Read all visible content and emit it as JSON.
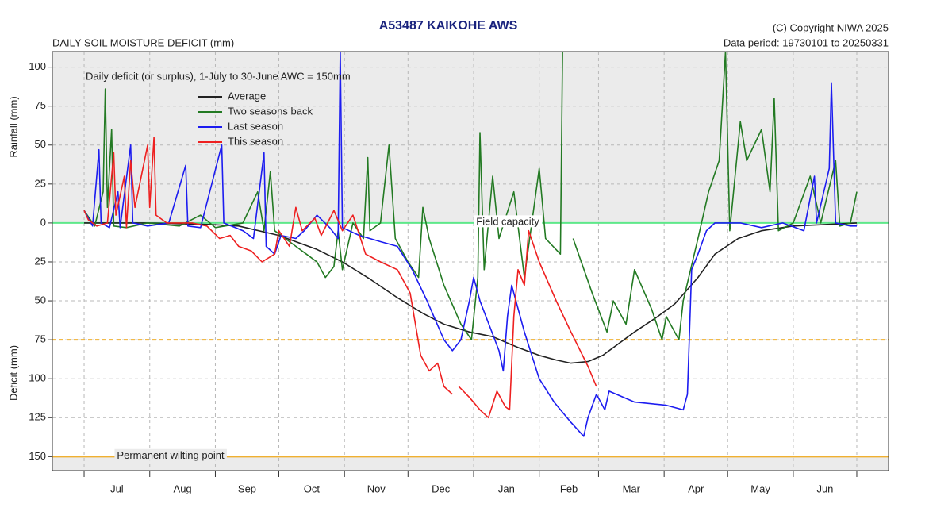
{
  "chart_data": {
    "type": "line",
    "title": "A53487  KAIKOHE AWS",
    "subtitle": "DAILY SOIL MOISTURE DEFICIT (mm)",
    "copyright": "(C) Copyright NIWA  2025",
    "data_period": "Data period:  19730101  to  20250331",
    "note": "Daily deficit (or surplus), 1-July to 30-June   AWC = 150mm",
    "y_label_upper": "Rainfall (mm)",
    "y_label_lower": "Deficit (mm)",
    "categories": [
      "Jul",
      "Aug",
      "Sep",
      "Oct",
      "Nov",
      "Dec",
      "Jan",
      "Feb",
      "Mar",
      "Apr",
      "May",
      "Jun"
    ],
    "xlim": [
      -15,
      380
    ],
    "xticks": [
      0,
      31,
      62,
      92,
      123,
      153,
      184,
      215,
      243,
      274,
      304,
      335,
      365
    ],
    "ylim": [
      -159,
      110
    ],
    "yticks": [
      {
        "value": -150,
        "label": "150"
      },
      {
        "value": -125,
        "label": "125"
      },
      {
        "value": -100,
        "label": "100"
      },
      {
        "value": -75,
        "label": "75"
      },
      {
        "value": -50,
        "label": "50"
      },
      {
        "value": -25,
        "label": "25"
      },
      0,
      25,
      50,
      75,
      100
    ],
    "grid": true,
    "legend": "upper left",
    "annotations": [
      {
        "text": "Field capacity",
        "y": 0,
        "color": "#5ee88a"
      },
      {
        "text": "Permanent wilting point",
        "y": -150,
        "color": "#f0b030"
      }
    ],
    "reference_lines": [
      {
        "y": -75,
        "color": "#f0b030",
        "dashed": true
      }
    ],
    "series": [
      {
        "name": "Average",
        "color": "#222222",
        "x": [
          0,
          30,
          60,
          73,
          92,
          110,
          122,
          135,
          148,
          160,
          170,
          182,
          193,
          205,
          215,
          223,
          230,
          238,
          245,
          252,
          260,
          270,
          279,
          290,
          298,
          309,
          320,
          335,
          350,
          365
        ],
        "values": [
          0,
          0,
          -1,
          -2,
          -8,
          -17,
          -25,
          -36,
          -48,
          -58,
          -65,
          -70,
          -73,
          -80,
          -85,
          -88,
          -90,
          -89,
          -85,
          -78,
          -70,
          -61,
          -52,
          -35,
          -20,
          -10,
          -5,
          -2,
          -1,
          0
        ]
      },
      {
        "name": "Two seasons back",
        "color": "#237a23",
        "x": [
          0,
          5,
          9,
          10,
          11,
          13,
          14,
          20,
          30,
          45,
          55,
          62,
          75,
          82,
          85,
          88,
          90,
          95,
          100,
          105,
          110,
          114,
          118,
          120,
          122,
          127,
          132,
          134,
          135,
          140,
          144,
          147,
          153,
          158,
          160,
          163,
          170,
          178,
          183,
          186,
          187,
          189,
          193,
          196,
          203,
          208,
          215,
          218,
          225,
          226,
          227,
          231,
          240,
          247,
          250,
          256,
          260,
          268,
          273,
          275,
          281,
          283,
          290,
          295,
          300,
          303,
          305,
          310,
          313,
          320,
          324,
          326,
          328,
          335,
          343,
          348,
          355,
          357,
          362,
          365
        ],
        "values": [
          8,
          -2,
          20,
          86,
          10,
          60,
          -2,
          -3,
          0,
          -2,
          5,
          -3,
          0,
          20,
          -5,
          33,
          -5,
          -10,
          -15,
          -20,
          -25,
          -35,
          -28,
          -5,
          -30,
          0,
          -10,
          42,
          -5,
          0,
          50,
          -10,
          -25,
          -35,
          10,
          -10,
          -40,
          -65,
          -75,
          -35,
          58,
          -30,
          30,
          -10,
          20,
          -35,
          35,
          -10,
          -20,
          110,
          null,
          -10,
          -45,
          -70,
          -50,
          -65,
          -30,
          -55,
          -75,
          -60,
          -75,
          -50,
          -10,
          20,
          40,
          110,
          -5,
          65,
          40,
          60,
          20,
          80,
          -5,
          0,
          30,
          0,
          40,
          -2,
          0,
          20
        ]
      },
      {
        "name": "Last season",
        "color": "#1c1cf0",
        "x": [
          0,
          4,
          7,
          8,
          12,
          16,
          17,
          22,
          23,
          30,
          40,
          48,
          49,
          55,
          65,
          66,
          75,
          80,
          85,
          86,
          90,
          93,
          100,
          104,
          110,
          116,
          120,
          121,
          122,
          130,
          140,
          148,
          155,
          162,
          170,
          174,
          178,
          182,
          184,
          187,
          196,
          198,
          200,
          202,
          208,
          215,
          222,
          230,
          236,
          238,
          242,
          246,
          248,
          260,
          275,
          283,
          285,
          287,
          290,
          294,
          298,
          310,
          320,
          330,
          340,
          345,
          346,
          352,
          353,
          355,
          362,
          365
        ],
        "values": [
          8,
          -2,
          47,
          0,
          -3,
          20,
          -3,
          50,
          0,
          -2,
          0,
          37,
          -2,
          -3,
          50,
          0,
          -5,
          -10,
          45,
          -15,
          -20,
          -8,
          -10,
          -5,
          5,
          -3,
          -10,
          110,
          -3,
          -8,
          -12,
          -15,
          -30,
          -50,
          -75,
          -82,
          -75,
          -50,
          -35,
          -50,
          -82,
          -95,
          -60,
          -40,
          -70,
          -100,
          -115,
          -128,
          -137,
          -125,
          -110,
          -120,
          -108,
          -115,
          -117,
          -120,
          -110,
          -30,
          -20,
          -5,
          0,
          0,
          -3,
          0,
          -5,
          30,
          0,
          35,
          90,
          0,
          -2,
          -2
        ]
      },
      {
        "name": "This season",
        "color": "#ee2020",
        "x": [
          0,
          2,
          6,
          11,
          14,
          15,
          19,
          20,
          22,
          24,
          30,
          31,
          33,
          34,
          39,
          51,
          58,
          64,
          69,
          73,
          79,
          84,
          90,
          92,
          97,
          100,
          103,
          109,
          112,
          118,
          122,
          127,
          133,
          140,
          148,
          154,
          159,
          163,
          167,
          170,
          174,
          175,
          177,
          182,
          187,
          191,
          195,
          199,
          201,
          203,
          205,
          208,
          210,
          215,
          223,
          230,
          238,
          242
        ],
        "values": [
          8,
          2,
          -2,
          0,
          45,
          5,
          30,
          -3,
          40,
          10,
          50,
          10,
          55,
          5,
          0,
          0,
          -2,
          -10,
          -8,
          -15,
          -18,
          -25,
          -20,
          -5,
          -15,
          10,
          -5,
          3,
          -8,
          8,
          -5,
          5,
          -20,
          -25,
          -30,
          -45,
          -85,
          -95,
          -90,
          -105,
          -110,
          null,
          -105,
          -112,
          -120,
          -125,
          -108,
          -118,
          -120,
          -60,
          -30,
          -40,
          -5,
          -25,
          -50,
          -70,
          -92,
          -105
        ]
      }
    ]
  }
}
